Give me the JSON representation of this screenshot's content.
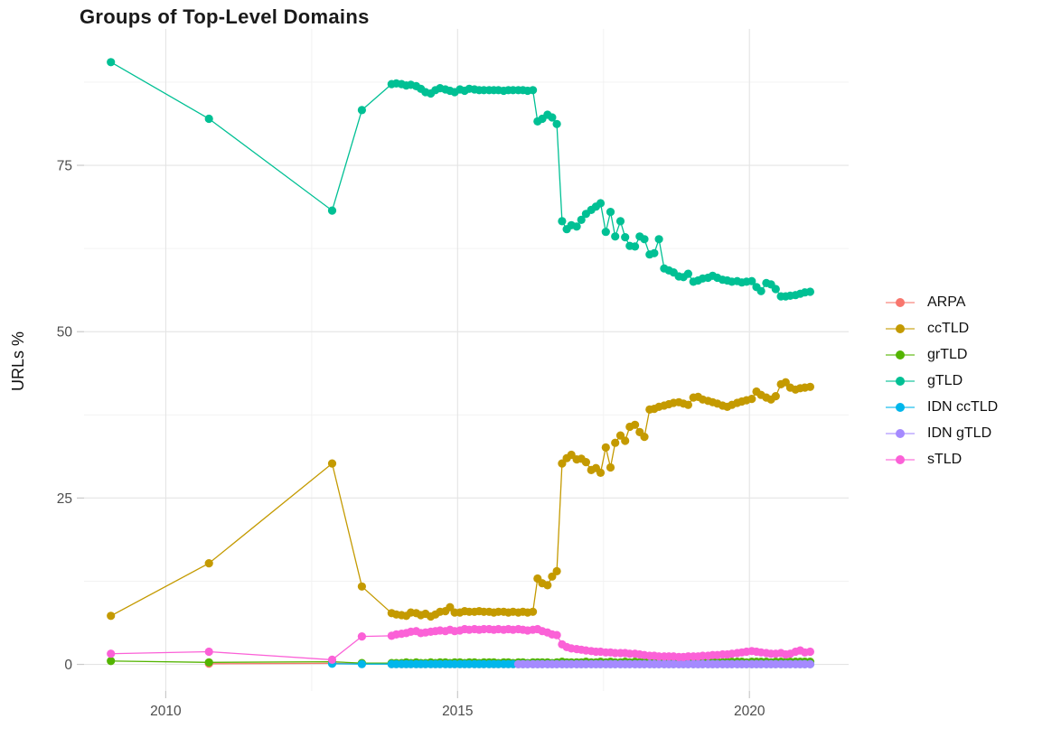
{
  "chart_data": {
    "type": "line",
    "title": "Groups of Top-Level Domains",
    "xlabel": "",
    "ylabel": "URLs %",
    "legend_position": "right",
    "grid": true,
    "colors": {
      "grid_major": "#e4e4e4",
      "grid_minor": "#f1f1f1",
      "tick_mark": "#c9c9c9",
      "tick_label": "#4d4d4d",
      "title_text": "#1a1a1a",
      "axis_title_text": "#111111"
    },
    "axes": {
      "x_domain": [
        2008.6,
        2021.7
      ],
      "y_domain": [
        -4,
        95.5
      ],
      "x_ticks": [
        2010,
        2015,
        2020
      ],
      "x_minor": [
        2012.5,
        2017.5
      ],
      "y_ticks": [
        0,
        25,
        50,
        75
      ],
      "y_minor": [
        12.5,
        37.5,
        62.5,
        87.5
      ]
    },
    "x": [
      2009.06,
      2010.74,
      2012.85,
      2013.36,
      2013.87,
      2013.95,
      2014.04,
      2014.12,
      2014.2,
      2014.29,
      2014.37,
      2014.45,
      2014.54,
      2014.62,
      2014.7,
      2014.79,
      2014.87,
      2014.95,
      2015.04,
      2015.12,
      2015.2,
      2015.29,
      2015.37,
      2015.45,
      2015.54,
      2015.62,
      2015.7,
      2015.79,
      2015.87,
      2015.95,
      2016.04,
      2016.12,
      2016.2,
      2016.29,
      2016.37,
      2016.45,
      2016.54,
      2016.62,
      2016.7,
      2016.79,
      2016.87,
      2016.95,
      2017.04,
      2017.12,
      2017.2,
      2017.29,
      2017.37,
      2017.45,
      2017.54,
      2017.62,
      2017.7,
      2017.79,
      2017.87,
      2017.95,
      2018.04,
      2018.12,
      2018.2,
      2018.29,
      2018.37,
      2018.45,
      2018.54,
      2018.62,
      2018.7,
      2018.79,
      2018.87,
      2018.95,
      2019.04,
      2019.12,
      2019.2,
      2019.29,
      2019.37,
      2019.45,
      2019.54,
      2019.62,
      2019.7,
      2019.79,
      2019.87,
      2019.95,
      2020.04,
      2020.12,
      2020.2,
      2020.29,
      2020.37,
      2020.45,
      2020.54,
      2020.62,
      2020.7,
      2020.79,
      2020.87,
      2020.95,
      2021.04
    ],
    "series": [
      {
        "name": "ARPA",
        "color": "#F8766D",
        "values": [
          null,
          0.1,
          0.15,
          0.1,
          0.05,
          0.05,
          0.05,
          0.05,
          0.05,
          0.05,
          0.05,
          0.05,
          0.05,
          0.05,
          0.05,
          0.05,
          0.05,
          0.05,
          0.05,
          0.05,
          0.05,
          0.05,
          0.05,
          0.05,
          0.05,
          0.05,
          0.05,
          0.05,
          0.05,
          0.05,
          0.05,
          0.05,
          0.05,
          0.05,
          0.05,
          0.05,
          0.05,
          0.05,
          0.05,
          0.05,
          0.05,
          0.05,
          0.05,
          0.05,
          0.05,
          0.05,
          0.05,
          0.05,
          0.05,
          0.05,
          0.05,
          0.05,
          0.05,
          0.05,
          0.05,
          0.05,
          0.05,
          0.05,
          0.05,
          0.05,
          0.05,
          0.05,
          0.05,
          0.05,
          0.05,
          0.05,
          0.05,
          0.05,
          0.05,
          0.05,
          0.05,
          0.05,
          0.05,
          0.05,
          0.05,
          0.05,
          0.05,
          0.05,
          0.05,
          0.05,
          0.05,
          0.05,
          0.05,
          0.05,
          0.05,
          0.05,
          0.05,
          0.05,
          0.05,
          0.05,
          0.05
        ]
      },
      {
        "name": "ccTLD",
        "color": "#C49A00",
        "values": [
          7.3,
          15.2,
          30.2,
          11.7,
          7.7,
          7.5,
          7.4,
          7.3,
          7.8,
          7.7,
          7.4,
          7.6,
          7.2,
          7.5,
          7.9,
          8.0,
          8.6,
          7.8,
          7.8,
          8.0,
          7.9,
          7.9,
          8.0,
          7.9,
          7.9,
          7.8,
          7.9,
          7.9,
          7.8,
          7.9,
          7.8,
          7.9,
          7.8,
          7.9,
          12.9,
          12.2,
          11.9,
          13.2,
          14.0,
          30.2,
          31.0,
          31.5,
          30.8,
          30.9,
          30.4,
          29.2,
          29.5,
          28.8,
          32.6,
          29.6,
          33.3,
          34.4,
          33.6,
          35.7,
          36.0,
          34.9,
          34.2,
          38.3,
          38.4,
          38.7,
          38.9,
          39.1,
          39.3,
          39.4,
          39.2,
          39.0,
          40.1,
          40.2,
          39.8,
          39.6,
          39.4,
          39.2,
          38.9,
          38.7,
          39.0,
          39.3,
          39.5,
          39.7,
          39.9,
          41.0,
          40.5,
          40.1,
          39.8,
          40.3,
          42.1,
          42.4,
          41.6,
          41.3,
          41.5,
          41.6,
          41.7
        ]
      },
      {
        "name": "grTLD",
        "color": "#53B400",
        "values": [
          0.5,
          0.3,
          0.4,
          0.2,
          0.2,
          0.2,
          0.2,
          0.3,
          0.2,
          0.3,
          0.2,
          0.2,
          0.3,
          0.2,
          0.3,
          0.3,
          0.2,
          0.3,
          0.3,
          0.2,
          0.3,
          0.3,
          0.2,
          0.3,
          0.3,
          0.3,
          0.2,
          0.3,
          0.3,
          0.2,
          0.3,
          0.3,
          0.2,
          0.3,
          0.3,
          0.3,
          0.3,
          0.2,
          0.3,
          0.4,
          0.3,
          0.3,
          0.3,
          0.3,
          0.4,
          0.3,
          0.3,
          0.4,
          0.3,
          0.4,
          0.3,
          0.3,
          0.4,
          0.3,
          0.4,
          0.3,
          0.4,
          0.4,
          0.3,
          0.4,
          0.4,
          0.3,
          0.4,
          0.4,
          0.3,
          0.4,
          0.4,
          0.4,
          0.3,
          0.4,
          0.4,
          0.4,
          0.3,
          0.4,
          0.4,
          0.4,
          0.4,
          0.3,
          0.4,
          0.4,
          0.4,
          0.4,
          0.3,
          0.4,
          0.4,
          0.4,
          0.4,
          0.4,
          0.4,
          0.4,
          0.4
        ]
      },
      {
        "name": "gTLD",
        "color": "#00C094",
        "values": [
          90.5,
          82.0,
          68.2,
          83.3,
          87.2,
          87.3,
          87.2,
          87.0,
          87.1,
          86.9,
          86.5,
          86.0,
          85.8,
          86.3,
          86.6,
          86.4,
          86.2,
          86.0,
          86.4,
          86.2,
          86.5,
          86.4,
          86.3,
          86.3,
          86.3,
          86.3,
          86.3,
          86.2,
          86.3,
          86.3,
          86.3,
          86.3,
          86.2,
          86.3,
          81.6,
          82.0,
          82.6,
          82.2,
          81.2,
          66.6,
          65.4,
          66.0,
          65.8,
          66.8,
          67.7,
          68.3,
          68.8,
          69.3,
          65.0,
          68.0,
          64.3,
          66.6,
          64.2,
          62.9,
          62.8,
          64.3,
          63.9,
          61.6,
          61.8,
          63.9,
          59.5,
          59.2,
          58.9,
          58.3,
          58.2,
          58.7,
          57.5,
          57.7,
          58.0,
          58.1,
          58.4,
          58.1,
          57.8,
          57.7,
          57.5,
          57.6,
          57.4,
          57.5,
          57.6,
          56.7,
          56.1,
          57.3,
          57.1,
          56.4,
          55.3,
          55.3,
          55.4,
          55.5,
          55.7,
          55.9,
          56.0
        ]
      },
      {
        "name": "IDN ccTLD",
        "color": "#00B6EB",
        "values": [
          null,
          null,
          0.1,
          0.05,
          0.05,
          0.05,
          0.05,
          0.05,
          0.05,
          0.05,
          0.05,
          0.05,
          0.05,
          0.05,
          0.05,
          0.05,
          0.05,
          0.05,
          0.05,
          0.05,
          0.05,
          0.05,
          0.05,
          0.05,
          0.05,
          0.05,
          0.05,
          0.05,
          0.05,
          0.05,
          0.05,
          0.05,
          0.05,
          0.05,
          0.05,
          0.05,
          0.05,
          0.05,
          0.05,
          0.05,
          0.05,
          0.05,
          0.05,
          0.05,
          0.05,
          0.05,
          0.05,
          0.05,
          0.05,
          0.05,
          0.05,
          0.05,
          0.05,
          0.05,
          0.05,
          0.05,
          0.05,
          0.05,
          0.05,
          0.05,
          0.05,
          0.05,
          0.05,
          0.05,
          0.05,
          0.05,
          0.05,
          0.05,
          0.05,
          0.05,
          0.05,
          0.05,
          0.05,
          0.05,
          0.05,
          0.05,
          0.05,
          0.05,
          0.05,
          0.05,
          0.05,
          0.05,
          0.05,
          0.05,
          0.05,
          0.05,
          0.05,
          0.05,
          0.05,
          0.05,
          0.05
        ]
      },
      {
        "name": "IDN gTLD",
        "color": "#A58AFF",
        "values": [
          null,
          null,
          null,
          null,
          null,
          null,
          null,
          null,
          null,
          null,
          null,
          null,
          null,
          null,
          null,
          null,
          null,
          null,
          null,
          null,
          null,
          null,
          null,
          null,
          null,
          null,
          null,
          null,
          null,
          null,
          0.03,
          0.03,
          0.03,
          0.03,
          0.03,
          0.03,
          0.03,
          0.03,
          0.03,
          0.03,
          0.03,
          0.03,
          0.03,
          0.03,
          0.03,
          0.03,
          0.03,
          0.03,
          0.03,
          0.03,
          0.03,
          0.03,
          0.03,
          0.03,
          0.03,
          0.03,
          0.03,
          0.03,
          0.03,
          0.03,
          0.03,
          0.03,
          0.03,
          0.03,
          0.03,
          0.03,
          0.03,
          0.03,
          0.03,
          0.03,
          0.03,
          0.03,
          0.03,
          0.03,
          0.03,
          0.03,
          0.03,
          0.03,
          0.03,
          0.03,
          0.03,
          0.03,
          0.03,
          0.03,
          0.03,
          0.03,
          0.03,
          0.03,
          0.03,
          0.03,
          0.03
        ]
      },
      {
        "name": "sTLD",
        "color": "#FB61D7",
        "values": [
          1.6,
          1.9,
          0.7,
          4.2,
          4.3,
          4.5,
          4.6,
          4.7,
          4.9,
          5.0,
          4.7,
          4.8,
          4.9,
          5.0,
          5.1,
          5.0,
          5.2,
          5.0,
          5.1,
          5.3,
          5.2,
          5.3,
          5.2,
          5.3,
          5.3,
          5.2,
          5.3,
          5.2,
          5.3,
          5.2,
          5.3,
          5.2,
          5.1,
          5.2,
          5.3,
          5.0,
          4.8,
          4.5,
          4.4,
          3.0,
          2.6,
          2.4,
          2.3,
          2.2,
          2.1,
          2.0,
          1.9,
          1.9,
          1.8,
          1.8,
          1.7,
          1.7,
          1.7,
          1.6,
          1.6,
          1.5,
          1.4,
          1.3,
          1.3,
          1.2,
          1.2,
          1.2,
          1.2,
          1.1,
          1.1,
          1.2,
          1.2,
          1.2,
          1.3,
          1.3,
          1.4,
          1.4,
          1.5,
          1.5,
          1.6,
          1.7,
          1.8,
          1.9,
          2.0,
          1.9,
          1.8,
          1.7,
          1.6,
          1.6,
          1.7,
          1.5,
          1.6,
          1.9,
          2.1,
          1.8,
          1.9
        ]
      }
    ]
  }
}
